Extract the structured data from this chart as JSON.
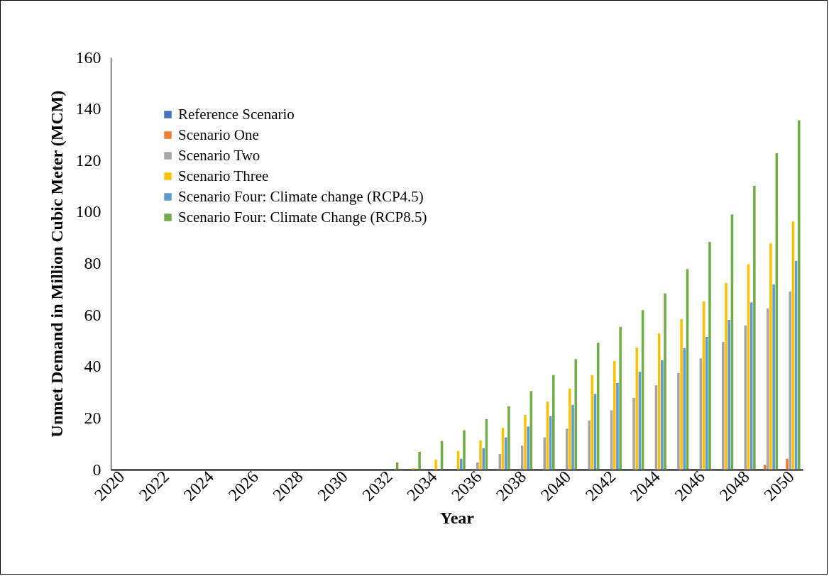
{
  "chart_data": {
    "type": "bar",
    "xlabel": "Year",
    "ylabel": "Unmet Demand in Million Cubic Meter (MCM)",
    "categories": [
      "2020",
      null,
      "2022",
      null,
      "2024",
      null,
      "2026",
      null,
      "2028",
      null,
      "2030",
      null,
      "2032",
      null,
      "2034",
      null,
      "2036",
      null,
      "2038",
      null,
      "2040",
      null,
      "2042",
      null,
      "2044",
      null,
      "2046",
      null,
      "2048",
      null,
      "2050"
    ],
    "series": [
      {
        "name": "Reference Scenario",
        "color": "#4472c4",
        "values": [
          0,
          0,
          0,
          0,
          0,
          0,
          0,
          0,
          0,
          0,
          0,
          0,
          0,
          0,
          0,
          0,
          0,
          0,
          0,
          0,
          0,
          0,
          0,
          0,
          0,
          0,
          0,
          0,
          0,
          0,
          0
        ]
      },
      {
        "name": "Scenario One",
        "color": "#ed7d31",
        "values": [
          0,
          0,
          0,
          0,
          0,
          0,
          0,
          0,
          0,
          0,
          0,
          0,
          0,
          0,
          0,
          0,
          0,
          0,
          0,
          0,
          0,
          0,
          0,
          0,
          0,
          0,
          0,
          0,
          0,
          1.9,
          4.2
        ]
      },
      {
        "name": "Scenario Two",
        "color": "#a5a5a5",
        "values": [
          0,
          0,
          0,
          0,
          0,
          0,
          0,
          0,
          0,
          0,
          0,
          0,
          0,
          0,
          0,
          0,
          2.8,
          6.1,
          9.3,
          12.5,
          15.9,
          19.1,
          23.0,
          27.8,
          32.7,
          37.5,
          43.2,
          49.6,
          56.0,
          62.5,
          69.1
        ]
      },
      {
        "name": "Scenario Three",
        "color": "#ffc000",
        "values": [
          0,
          0,
          0,
          0,
          0,
          0,
          0,
          0,
          0,
          0,
          0,
          0,
          0,
          0.5,
          3.9,
          7.2,
          11.3,
          16.2,
          21.2,
          26.4,
          31.5,
          36.6,
          42.1,
          47.4,
          52.9,
          58.4,
          65.3,
          72.4,
          79.7,
          87.8,
          96.3
        ]
      },
      {
        "name": "Scenario Four: Climate change (RCP4.5)",
        "color": "#5b9bd5",
        "values": [
          0,
          0,
          0,
          0,
          0,
          0,
          0,
          0,
          0,
          0,
          0,
          0,
          0,
          0,
          0,
          4.2,
          8.3,
          12.5,
          16.7,
          20.8,
          25.1,
          29.4,
          33.6,
          38.0,
          42.5,
          47.1,
          51.5,
          58.1,
          64.9,
          71.9,
          81.0
        ]
      },
      {
        "name": "Scenario Four: Climate Change (RCP8.5)",
        "color": "#70ad47",
        "values": [
          0,
          0,
          0,
          0,
          0,
          0,
          0,
          0,
          0,
          0,
          0,
          0,
          2.8,
          6.9,
          11.1,
          15.3,
          19.6,
          24.6,
          30.5,
          36.7,
          42.9,
          49.2,
          55.4,
          61.9,
          68.4,
          77.9,
          88.4,
          99.1,
          110.2,
          122.8,
          135.6
        ]
      }
    ],
    "ylim": [
      0,
      160
    ],
    "yticks": [
      0,
      20,
      40,
      60,
      80,
      100,
      120,
      140,
      160
    ],
    "grid": false,
    "legend": "top left"
  }
}
